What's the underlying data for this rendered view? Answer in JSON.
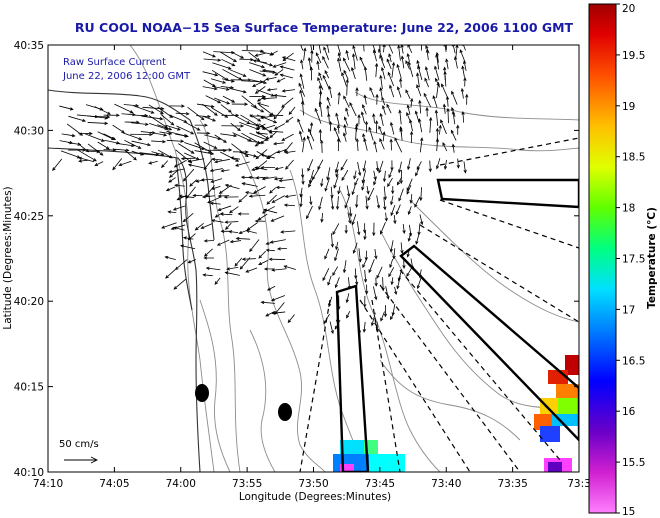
{
  "chart_data": {
    "type": "map-vector-field",
    "title": "RU COOL   NOAA−15  Sea Surface Temperature:  June 22, 2006 1100 GMT",
    "xlabel": "Longitude (Degrees:Minutes)",
    "ylabel": "Latitude (Degrees:Minutes)",
    "xticks": [
      "74:10",
      "74:05",
      "74:00",
      "73:55",
      "73:50",
      "73:45",
      "73:40",
      "73:35",
      "73:3"
    ],
    "yticks": [
      "40:35",
      "40:30",
      "40:25",
      "40:20",
      "40:15",
      "40:10"
    ],
    "legend_lines": [
      "Raw Surface Current",
      "June 22, 2006 12:00 GMT"
    ],
    "scale_label": "50 cm/s",
    "colorbar": {
      "label": "Temperature (°C)",
      "range": [
        15,
        20
      ],
      "ticks": [
        "20",
        "19.5",
        "19",
        "18.5",
        "18",
        "17.5",
        "17",
        "16.5",
        "16",
        "15.5",
        "15"
      ]
    },
    "title_color": "#1a1aa8",
    "legend_color": "#1a1aa8"
  }
}
